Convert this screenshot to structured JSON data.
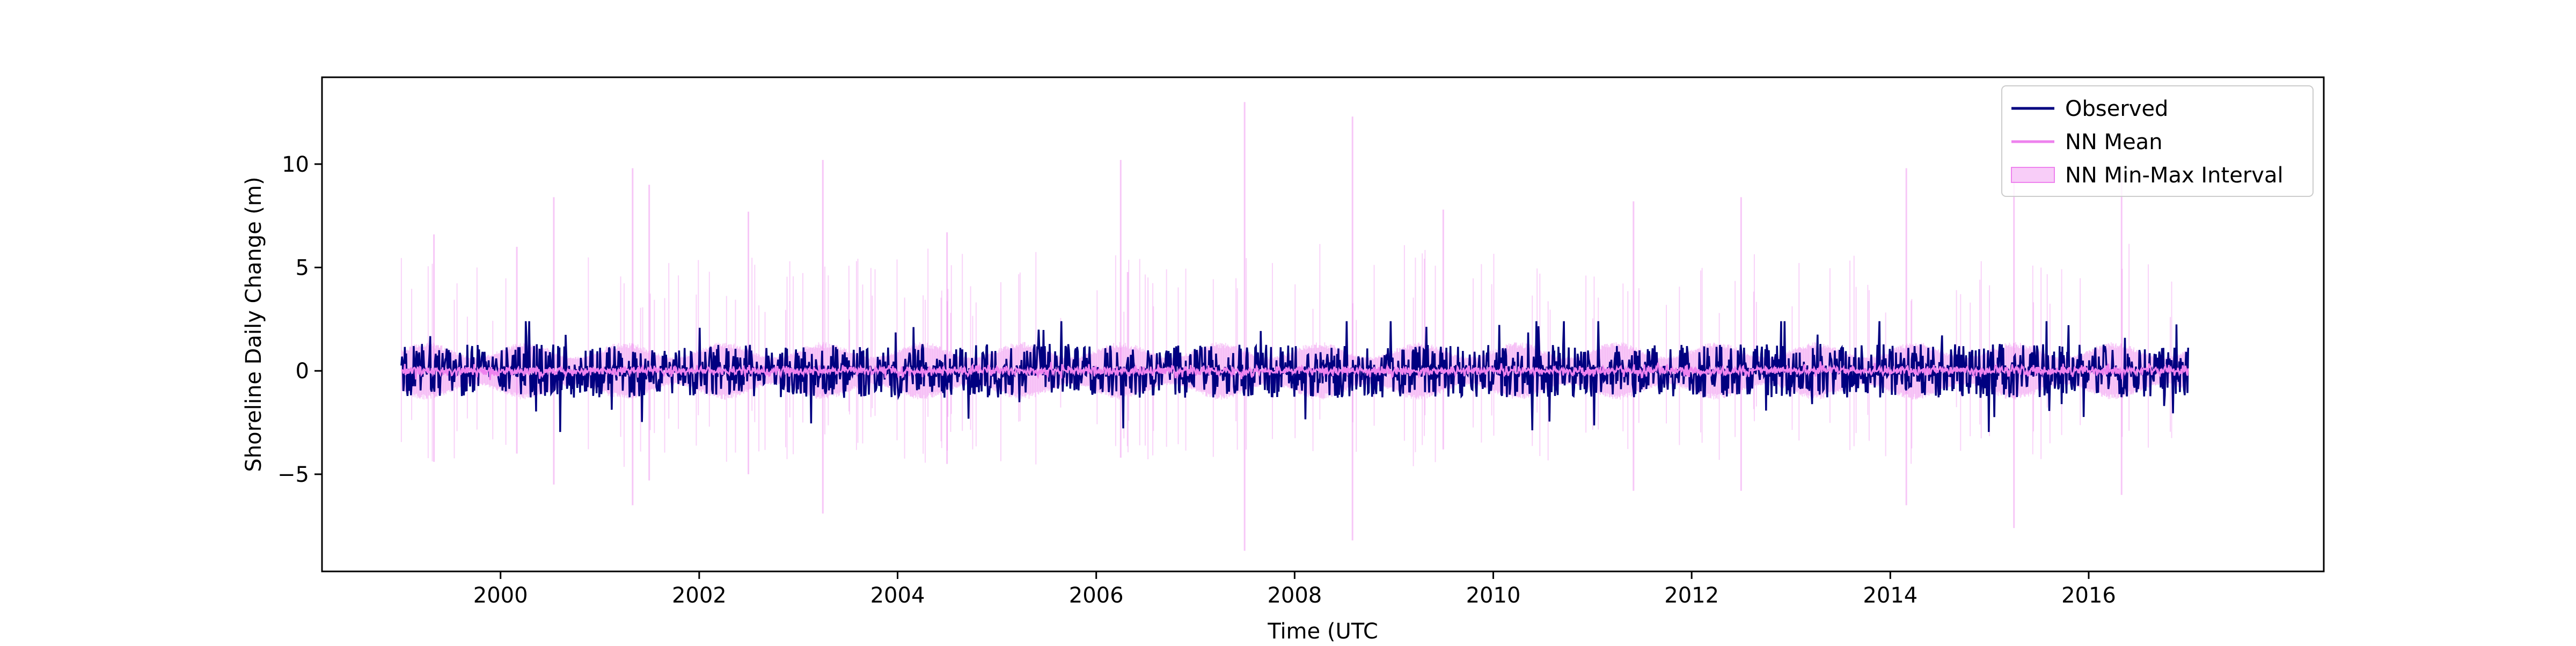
{
  "chart_data": {
    "type": "line",
    "title": "",
    "xlabel": "Time (UTC",
    "ylabel": "Shoreline Daily Change (m)",
    "xlim": [
      "1998-03-15",
      "2018-05-15"
    ],
    "ylim": [
      -9.7,
      14.2
    ],
    "x_ticks": [
      "2000",
      "2002",
      "2004",
      "2006",
      "2008",
      "2010",
      "2012",
      "2014",
      "2016"
    ],
    "y_ticks": [
      -5,
      0,
      5,
      10
    ],
    "y_tick_labels": [
      "−5",
      "0",
      "5",
      "10"
    ],
    "grid": false,
    "legend_position": "top-right",
    "date_range": [
      "1999-01-01",
      "2017-01-01"
    ],
    "series": [
      {
        "name": "Observed",
        "kind": "line",
        "color": "#000080",
        "typical_range": [
          -1.2,
          1.3
        ],
        "extremes": [
          -3.5,
          2.4
        ]
      },
      {
        "name": "NN Mean",
        "kind": "line",
        "color": "#ee82ee",
        "typical_range": [
          -0.3,
          0.3
        ]
      },
      {
        "name": "NN Min-Max Interval",
        "kind": "band",
        "color": "#ee82ee",
        "typical_range": [
          -1.2,
          1.2
        ],
        "extremes": [
          -8.7,
          13.0
        ]
      }
    ],
    "band_spikes": [
      {
        "date": "1999-05-01",
        "low": -4.4,
        "high": 6.6
      },
      {
        "date": "2000-03-01",
        "low": -4.0,
        "high": 6.0
      },
      {
        "date": "2000-07-15",
        "low": -5.5,
        "high": 8.4
      },
      {
        "date": "2001-05-01",
        "low": -6.5,
        "high": 9.8
      },
      {
        "date": "2001-07-01",
        "low": -5.3,
        "high": 9.0
      },
      {
        "date": "2002-07-01",
        "low": -5.0,
        "high": 7.7
      },
      {
        "date": "2003-04-01",
        "low": -6.9,
        "high": 10.2
      },
      {
        "date": "2004-07-01",
        "low": -4.5,
        "high": 6.7
      },
      {
        "date": "2006-04-01",
        "low": -4.2,
        "high": 10.2
      },
      {
        "date": "2007-07-01",
        "low": -8.7,
        "high": 13.0
      },
      {
        "date": "2008-08-01",
        "low": -8.2,
        "high": 12.3
      },
      {
        "date": "2009-07-01",
        "low": -3.8,
        "high": 7.8
      },
      {
        "date": "2011-06-01",
        "low": -5.8,
        "high": 8.2
      },
      {
        "date": "2012-07-01",
        "low": -5.8,
        "high": 8.4
      },
      {
        "date": "2014-03-01",
        "low": -6.5,
        "high": 9.8
      },
      {
        "date": "2015-04-01",
        "low": -7.6,
        "high": 9.2
      },
      {
        "date": "2016-05-01",
        "low": -6.0,
        "high": 9.7
      }
    ]
  }
}
